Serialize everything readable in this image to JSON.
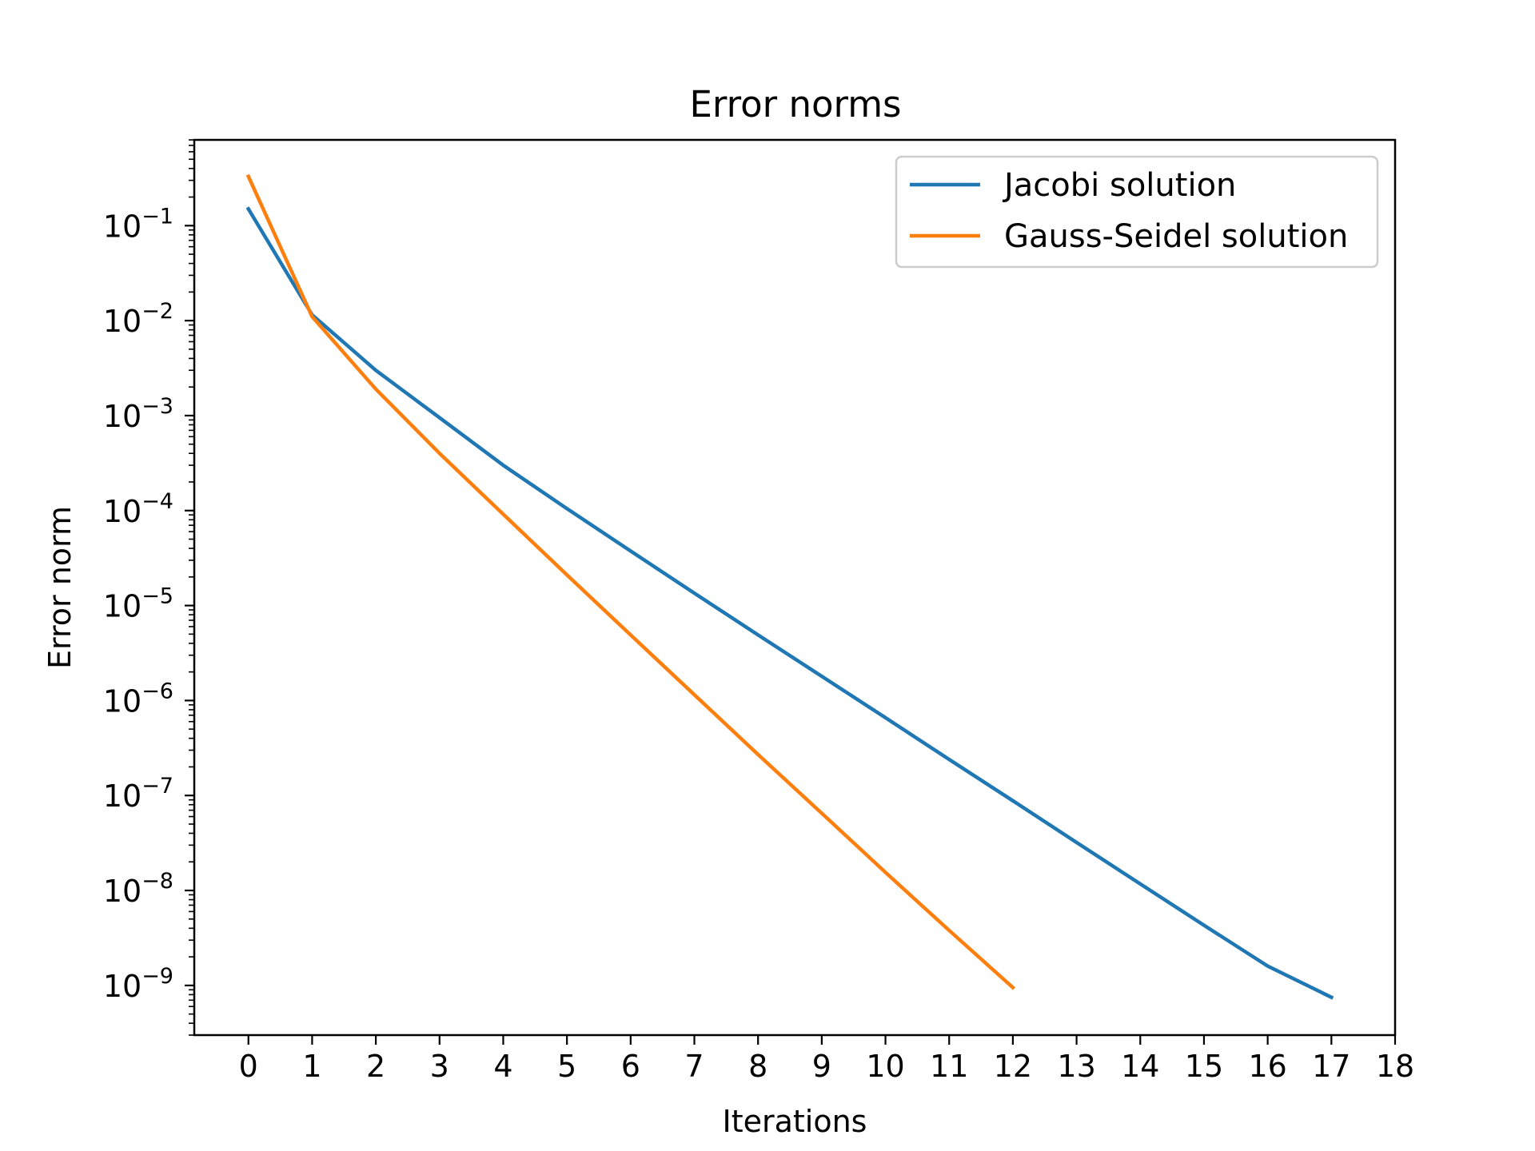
{
  "chart_data": {
    "type": "line",
    "title": "Error norms",
    "xlabel": "Iterations",
    "ylabel": "Error norm",
    "xlim": [
      -0.85,
      18
    ],
    "ylim": [
      3e-10,
      0.8
    ],
    "yscale": "log",
    "grid": false,
    "legend_position": "top-right",
    "x_ticks": [
      "0",
      "1",
      "2",
      "3",
      "4",
      "5",
      "6",
      "7",
      "8",
      "9",
      "10",
      "11",
      "12",
      "13",
      "14",
      "15",
      "16",
      "17",
      "18"
    ],
    "y_ticks": [
      {
        "base": "10",
        "exp": "−1"
      },
      {
        "base": "10",
        "exp": "−2"
      },
      {
        "base": "10",
        "exp": "−3"
      },
      {
        "base": "10",
        "exp": "−4"
      },
      {
        "base": "10",
        "exp": "−5"
      },
      {
        "base": "10",
        "exp": "−6"
      },
      {
        "base": "10",
        "exp": "−7"
      },
      {
        "base": "10",
        "exp": "−8"
      },
      {
        "base": "10",
        "exp": "−9"
      }
    ],
    "series": [
      {
        "name": "Jacobi solution",
        "color": "#1f77b4",
        "x": [
          0,
          1,
          2,
          3,
          4,
          5,
          6,
          7,
          8,
          9,
          10,
          11,
          12,
          13,
          14,
          15,
          16,
          17
        ],
        "values": [
          0.15,
          0.0115,
          0.003,
          0.00095,
          0.0003,
          0.000105,
          3.75e-05,
          1.35e-05,
          4.9e-06,
          1.8e-06,
          6.6e-07,
          2.4e-07,
          8.8e-08,
          3.2e-08,
          1.17e-08,
          4.3e-09,
          1.6e-09,
          7.5e-10
        ]
      },
      {
        "name": "Gauss-Seidel solution",
        "color": "#ff7f0e",
        "x": [
          0,
          1,
          2,
          3,
          4,
          5,
          6,
          7,
          8,
          9,
          10,
          11,
          12
        ],
        "values": [
          0.33,
          0.011,
          0.0019,
          0.0004,
          9.15e-05,
          2.1e-05,
          4.9e-06,
          1.15e-06,
          2.7e-07,
          6.5e-08,
          1.55e-08,
          3.8e-09,
          9.5e-10
        ]
      }
    ]
  }
}
